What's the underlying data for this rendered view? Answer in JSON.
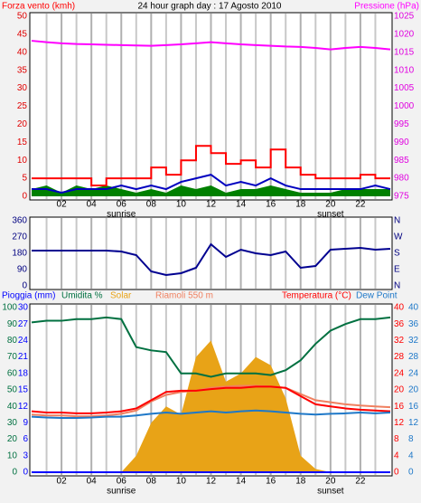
{
  "chart_data": [
    {
      "type": "line",
      "title": "24 hour graph day : 17 Agosto 2010",
      "x": [
        0,
        1,
        2,
        3,
        4,
        5,
        6,
        7,
        8,
        9,
        10,
        11,
        12,
        13,
        14,
        15,
        16,
        17,
        18,
        19,
        20,
        21,
        22,
        23,
        24
      ],
      "xlim": [
        0,
        24
      ],
      "xticks": [
        {
          "value": 2,
          "label": "02"
        },
        {
          "value": 4,
          "label": "04"
        },
        {
          "value": 6,
          "label": "06"
        },
        {
          "value": 8,
          "label": "08"
        },
        {
          "value": 10,
          "label": "10"
        },
        {
          "value": 12,
          "label": "12"
        },
        {
          "value": 14,
          "label": "14"
        },
        {
          "value": 16,
          "label": "16"
        },
        {
          "value": 18,
          "label": "18"
        },
        {
          "value": 20,
          "label": "20"
        },
        {
          "value": 22,
          "label": "22"
        }
      ],
      "minor_xticks": [
        1,
        3,
        5,
        7,
        9,
        11,
        13,
        15,
        17,
        19,
        21,
        23
      ],
      "annotations": [
        {
          "x": 6,
          "text": "sunrise"
        },
        {
          "x": 20,
          "text": "sunset"
        }
      ],
      "axes": [
        {
          "side": "left",
          "color": "#e00000",
          "lim": [
            0,
            50
          ],
          "ticks": [
            0,
            5,
            10,
            15,
            20,
            25,
            30,
            35,
            40,
            45,
            50
          ]
        },
        {
          "side": "right",
          "color": "#e000e0",
          "lim": [
            975,
            1025
          ],
          "ticks": [
            975,
            980,
            985,
            990,
            995,
            1000,
            1005,
            1010,
            1015,
            1020,
            1025
          ]
        }
      ],
      "series": [
        {
          "style": "area",
          "color": "#008000",
          "axis": 0,
          "values": [
            2,
            3,
            1,
            3,
            2,
            3,
            2,
            1,
            2,
            1,
            3,
            2,
            3,
            1,
            2,
            2,
            3,
            2,
            1,
            1,
            1,
            2,
            2,
            2,
            2
          ]
        },
        {
          "style": "line",
          "color": "#0000c0",
          "axis": 0,
          "values": [
            2,
            2,
            1,
            2,
            2,
            2,
            3,
            2,
            3,
            2,
            4,
            5,
            6,
            3,
            4,
            3,
            5,
            3,
            2,
            2,
            2,
            2,
            2,
            3,
            2
          ]
        },
        {
          "style": "step",
          "name": "Forza vento (kmh)",
          "color": "#ff0000",
          "axis": 0,
          "values": [
            5,
            5,
            5,
            5,
            3,
            5,
            5,
            5,
            8,
            6,
            10,
            14,
            12,
            9,
            10,
            8,
            13,
            8,
            6,
            5,
            5,
            5,
            6,
            5,
            5
          ]
        },
        {
          "style": "line",
          "name": "Pressione (hPa)",
          "color": "#ff00ff",
          "axis": 1,
          "values": [
            1018.2,
            1017.8,
            1017.5,
            1017.3,
            1017.2,
            1017.1,
            1017,
            1016.9,
            1016.8,
            1017,
            1017.2,
            1017.5,
            1017.8,
            1017.5,
            1017.2,
            1017,
            1016.8,
            1016.6,
            1016.5,
            1016.2,
            1015.8,
            1016.2,
            1016.5,
            1016.2,
            1015.8
          ]
        }
      ]
    },
    {
      "type": "line",
      "x": [
        0,
        1,
        2,
        3,
        4,
        5,
        6,
        7,
        8,
        9,
        10,
        11,
        12,
        13,
        14,
        15,
        16,
        17,
        18,
        19,
        20,
        21,
        22,
        23,
        24
      ],
      "xlim": [
        0,
        24
      ],
      "xticks": [
        {
          "value": 2,
          "label": "02"
        },
        {
          "value": 4,
          "label": "04"
        },
        {
          "value": 6,
          "label": "06"
        },
        {
          "value": 8,
          "label": "08"
        },
        {
          "value": 10,
          "label": "10"
        },
        {
          "value": 12,
          "label": "12"
        },
        {
          "value": 14,
          "label": "14"
        },
        {
          "value": 16,
          "label": "16"
        },
        {
          "value": 18,
          "label": "18"
        },
        {
          "value": 20,
          "label": "20"
        },
        {
          "value": 22,
          "label": "22"
        }
      ],
      "minor_xticks": [
        1,
        3,
        5,
        7,
        9,
        11,
        13,
        15,
        17,
        19,
        21,
        23
      ],
      "axes": [
        {
          "side": "left",
          "color": "#000080",
          "lim": [
            0,
            360
          ],
          "ticks": [
            0,
            90,
            180,
            270,
            360
          ]
        },
        {
          "side": "right",
          "color": "#000080",
          "lim": [
            0,
            360
          ],
          "ticks": [
            {
              "value": 0,
              "label": "N"
            },
            {
              "value": 90,
              "label": "E"
            },
            {
              "value": 180,
              "label": "S"
            },
            {
              "value": 270,
              "label": "W"
            },
            {
              "value": 360,
              "label": "N"
            }
          ]
        }
      ],
      "series": [
        {
          "style": "line",
          "color": "#000090",
          "axis": 0,
          "values": [
            195,
            195,
            195,
            195,
            195,
            195,
            190,
            170,
            80,
            60,
            70,
            100,
            230,
            160,
            200,
            180,
            170,
            190,
            100,
            110,
            200,
            205,
            210,
            200,
            205
          ]
        }
      ]
    },
    {
      "type": "line",
      "x": [
        0,
        1,
        2,
        3,
        4,
        5,
        6,
        7,
        8,
        9,
        10,
        11,
        12,
        13,
        14,
        15,
        16,
        17,
        18,
        19,
        20,
        21,
        22,
        23,
        24
      ],
      "xlim": [
        0,
        24
      ],
      "xticks": [
        {
          "value": 2,
          "label": "02"
        },
        {
          "value": 4,
          "label": "04"
        },
        {
          "value": 6,
          "label": "06"
        },
        {
          "value": 8,
          "label": "08"
        },
        {
          "value": 10,
          "label": "10"
        },
        {
          "value": 12,
          "label": "12"
        },
        {
          "value": 14,
          "label": "14"
        },
        {
          "value": 16,
          "label": "16"
        },
        {
          "value": 18,
          "label": "18"
        },
        {
          "value": 20,
          "label": "20"
        },
        {
          "value": 22,
          "label": "22"
        }
      ],
      "minor_xticks": [
        1,
        3,
        5,
        7,
        9,
        11,
        13,
        15,
        17,
        19,
        21,
        23
      ],
      "annotations": [
        {
          "x": 6,
          "text": "sunrise"
        },
        {
          "x": 20,
          "text": "sunset"
        }
      ],
      "axes": [
        {
          "side": "left",
          "color": "#007040",
          "lim": [
            0,
            100
          ],
          "ticks": [
            0,
            10,
            20,
            30,
            40,
            50,
            60,
            70,
            80,
            90,
            100
          ]
        },
        {
          "side": "left",
          "color": "#0000ff",
          "lim": [
            0,
            30
          ],
          "ticks": [
            0,
            3,
            6,
            9,
            12,
            15,
            18,
            21,
            24,
            27,
            30
          ]
        },
        {
          "side": "right",
          "color": "#ff0000",
          "lim": [
            0,
            40
          ],
          "ticks": [
            0,
            4,
            8,
            12,
            16,
            20,
            24,
            28,
            32,
            36,
            40
          ]
        },
        {
          "side": "right",
          "color": "#1e78c8",
          "lim": [
            0,
            40
          ],
          "ticks": [
            0,
            4,
            8,
            12,
            16,
            20,
            24,
            28,
            32,
            36,
            40
          ]
        }
      ],
      "series": [
        {
          "style": "area",
          "name": "Solar",
          "color": "#e8a317",
          "axis": 0,
          "values": [
            0,
            0,
            0,
            0,
            0,
            0,
            0,
            10,
            30,
            40,
            35,
            70,
            80,
            55,
            60,
            70,
            65,
            45,
            10,
            2,
            0,
            0,
            0,
            0,
            0
          ]
        },
        {
          "style": "line",
          "name": "Pioggia (mm)",
          "color": "#0000ff",
          "axis": 1,
          "values": [
            0,
            0,
            0,
            0,
            0,
            0,
            0,
            0,
            0,
            0,
            0,
            0,
            0,
            0,
            0,
            0,
            0,
            0,
            0,
            0,
            0,
            0,
            0,
            0,
            0
          ]
        },
        {
          "style": "line",
          "name": "Umidita %",
          "color": "#007040",
          "axis": 0,
          "values": [
            91,
            92,
            92,
            93,
            93,
            94,
            93,
            76,
            74,
            73,
            60,
            60,
            58,
            60,
            60,
            60,
            59,
            62,
            68,
            78,
            86,
            90,
            93,
            93,
            94
          ]
        },
        {
          "style": "line",
          "name": "Riamoli 550 m",
          "color": "#f08060",
          "axis": 2,
          "values": [
            14,
            13.8,
            13.8,
            13.6,
            13.6,
            13.8,
            14.2,
            15,
            17.2,
            18.8,
            19.5,
            19.8,
            20.5,
            20.8,
            21,
            21,
            20.8,
            20.5,
            19,
            17.5,
            17,
            16.5,
            16.2,
            16,
            15.8
          ]
        },
        {
          "style": "line",
          "name": "Temperatura (°C)",
          "color": "#ff0000",
          "axis": 2,
          "values": [
            14.8,
            14.5,
            14.5,
            14.3,
            14.3,
            14.5,
            14.8,
            15.5,
            17.5,
            19.5,
            19.8,
            19.8,
            20.2,
            20.5,
            20.5,
            20.8,
            20.8,
            20.5,
            18.5,
            16.5,
            16,
            15.5,
            15.2,
            15,
            14.8
          ]
        },
        {
          "style": "line",
          "name": "Dew Point",
          "color": "#1e78c8",
          "axis": 3,
          "values": [
            13.5,
            13.3,
            13.2,
            13.2,
            13.3,
            13.5,
            13.5,
            13.8,
            14.2,
            14.5,
            14.2,
            14.5,
            14.8,
            14.5,
            14.8,
            15,
            14.8,
            14.5,
            14.2,
            14,
            14.2,
            14.3,
            14.5,
            14.3,
            14.5
          ]
        }
      ]
    }
  ]
}
